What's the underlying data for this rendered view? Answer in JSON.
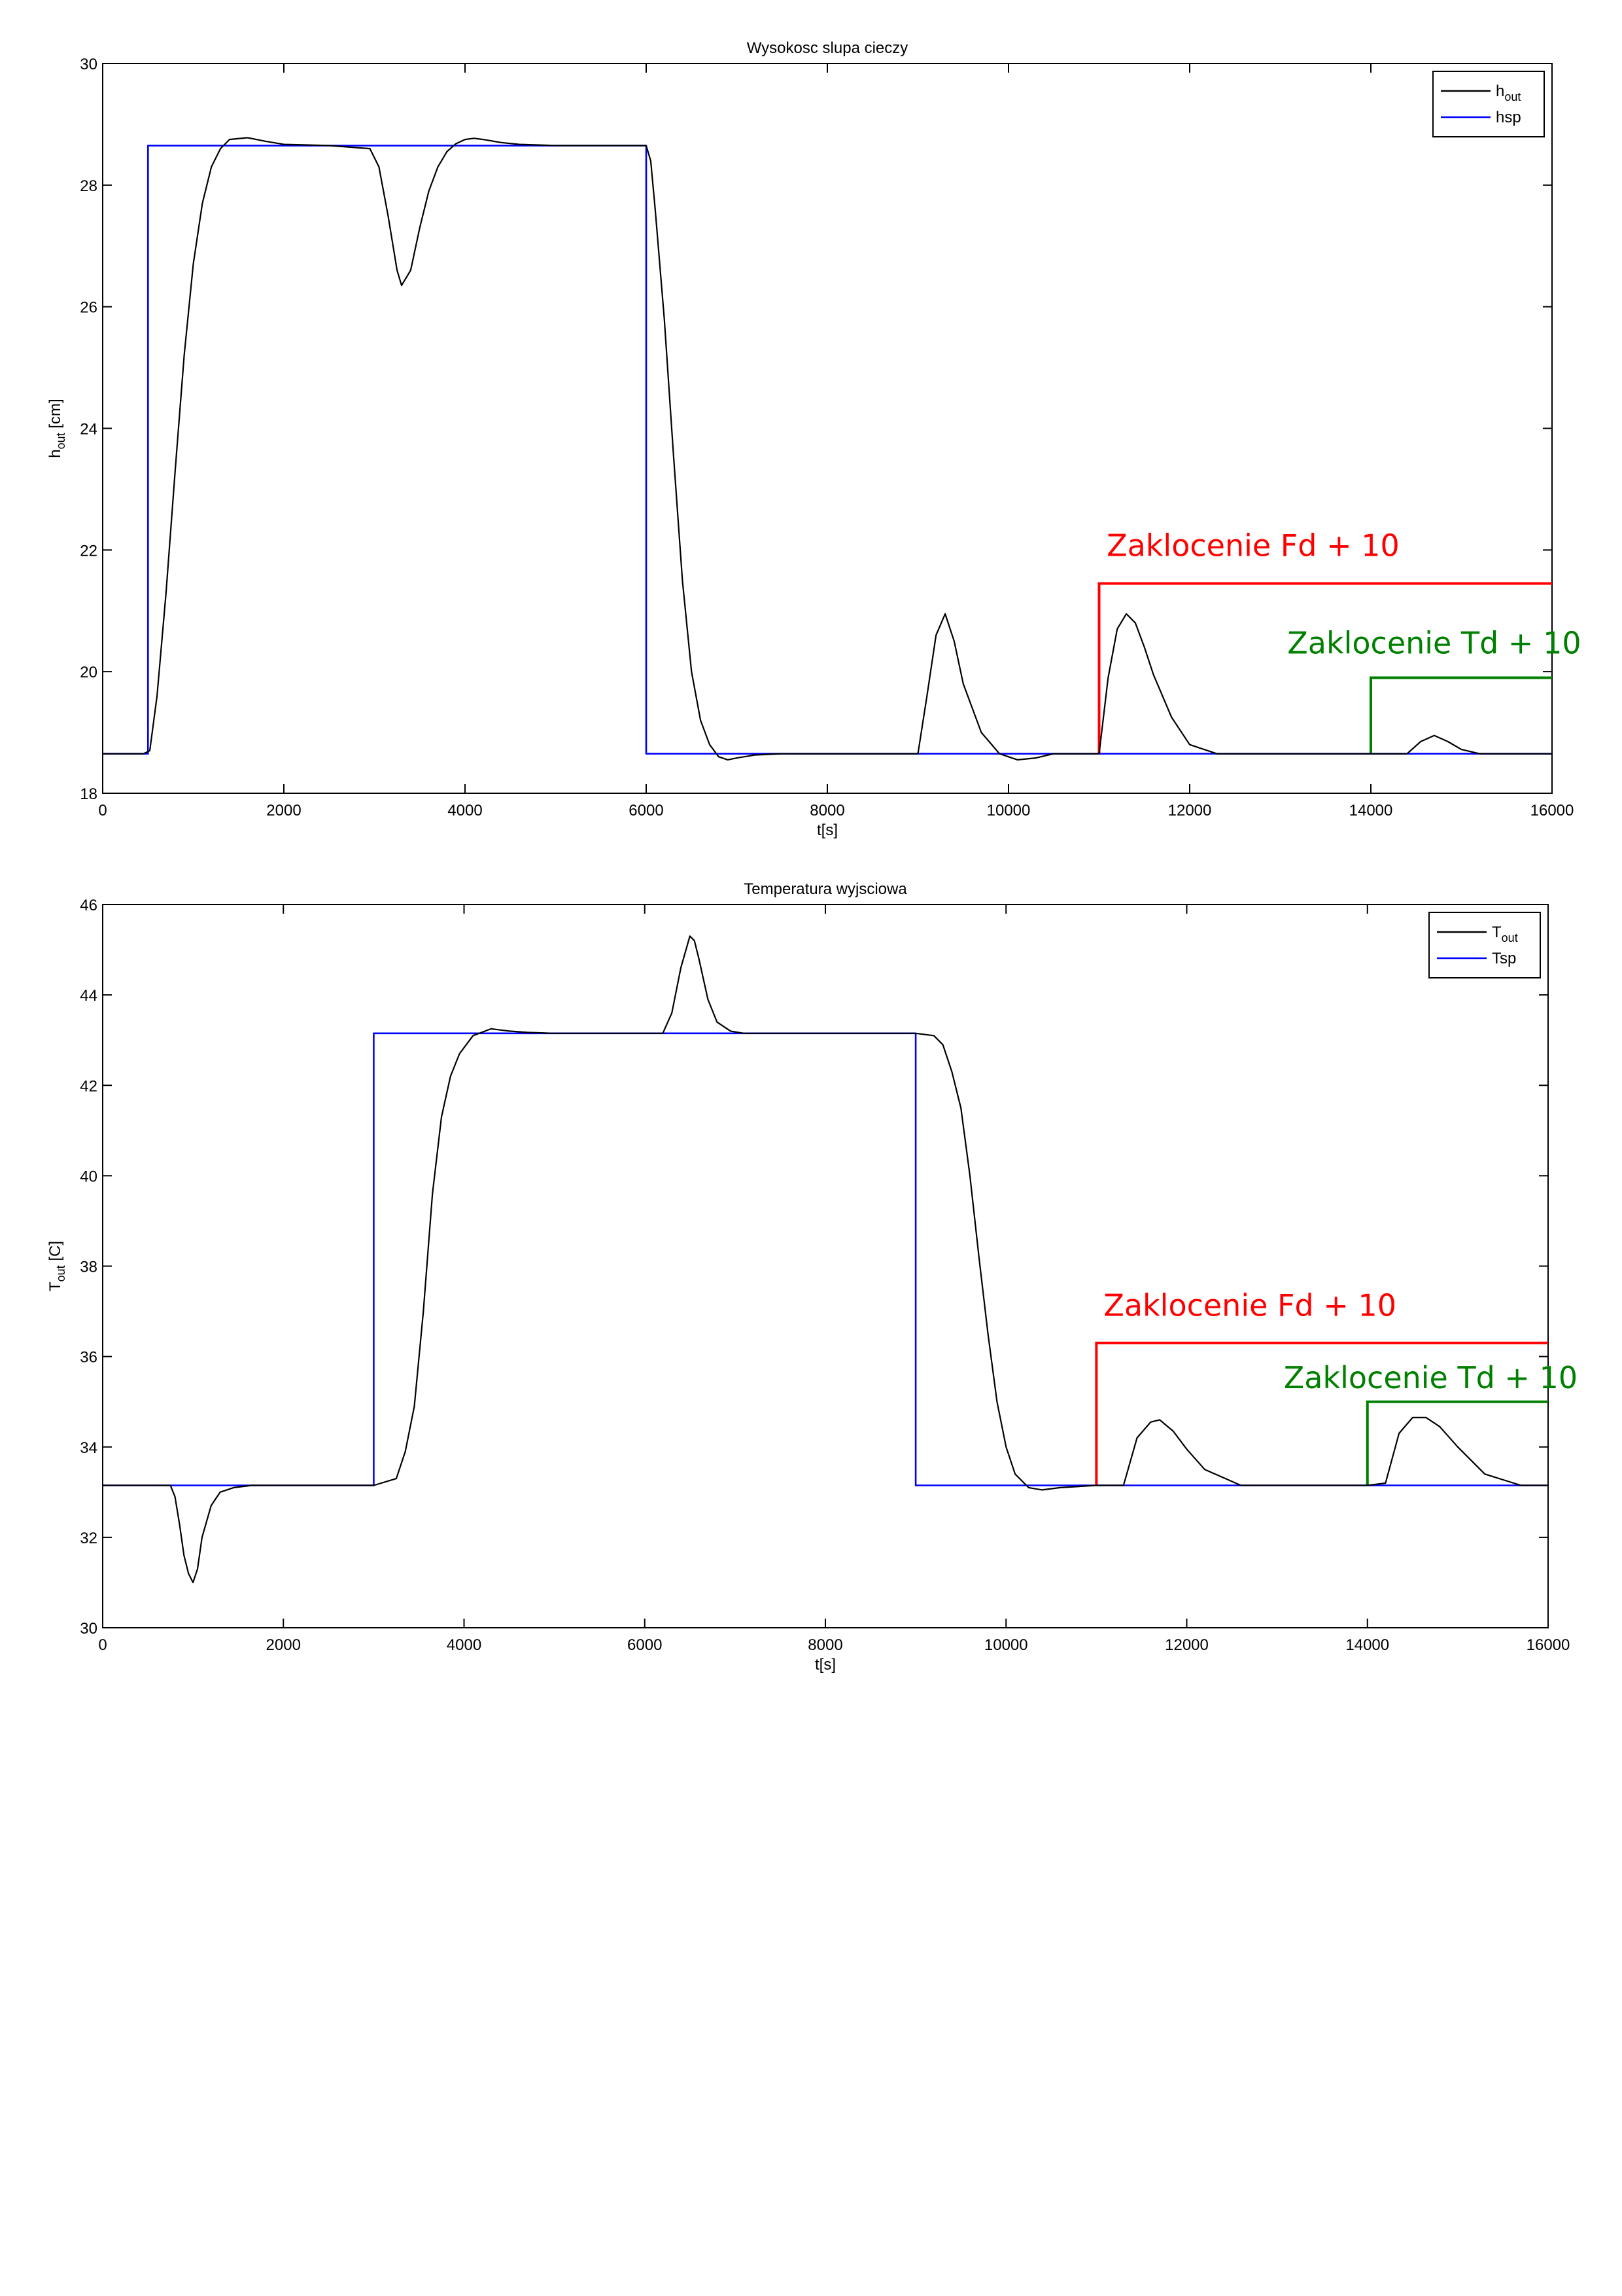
{
  "chart_data": [
    {
      "type": "line",
      "title": "Wysokosc slupa cieczy",
      "xlabel": "t[s]",
      "ylabel": {
        "base": "h",
        "sub": "out",
        "suffix": " [cm]"
      },
      "xlim": [
        0,
        16000
      ],
      "ylim": [
        18,
        30
      ],
      "xticks": [
        0,
        2000,
        4000,
        6000,
        8000,
        10000,
        12000,
        14000,
        16000
      ],
      "yticks": [
        18,
        20,
        22,
        24,
        26,
        28,
        30
      ],
      "legend_position": "top-right",
      "series": [
        {
          "name": "h_out",
          "label": {
            "base": "h",
            "sub": "out"
          },
          "color": "#000000",
          "x": [
            0,
            450,
            520,
            600,
            700,
            800,
            900,
            1000,
            1100,
            1200,
            1300,
            1400,
            1600,
            1800,
            2000,
            2500,
            2950,
            3050,
            3150,
            3250,
            3300,
            3400,
            3500,
            3600,
            3700,
            3800,
            3900,
            4000,
            4100,
            4200,
            4400,
            4600,
            5000,
            6000,
            6050,
            6100,
            6200,
            6300,
            6400,
            6500,
            6600,
            6700,
            6800,
            6900,
            7000,
            7200,
            7500,
            8000,
            9000,
            9100,
            9200,
            9300,
            9400,
            9500,
            9700,
            9900,
            10100,
            10300,
            10500,
            11000,
            11100,
            11200,
            11300,
            11400,
            11500,
            11600,
            11800,
            12000,
            12300,
            12600,
            14000,
            14400,
            14550,
            14700,
            14850,
            15000,
            15200,
            16000
          ],
          "y": [
            18.65,
            18.65,
            18.7,
            19.6,
            21.3,
            23.3,
            25.2,
            26.7,
            27.7,
            28.3,
            28.6,
            28.75,
            28.78,
            28.72,
            28.67,
            28.65,
            28.6,
            28.3,
            27.5,
            26.6,
            26.35,
            26.6,
            27.3,
            27.9,
            28.3,
            28.55,
            28.68,
            28.75,
            28.77,
            28.75,
            28.7,
            28.67,
            28.65,
            28.65,
            28.4,
            27.6,
            25.8,
            23.6,
            21.5,
            20.0,
            19.2,
            18.8,
            18.6,
            18.55,
            18.58,
            18.63,
            18.65,
            18.65,
            18.65,
            19.6,
            20.6,
            20.95,
            20.5,
            19.8,
            19.0,
            18.65,
            18.55,
            18.58,
            18.65,
            18.65,
            19.9,
            20.7,
            20.95,
            20.8,
            20.4,
            19.95,
            19.25,
            18.8,
            18.65,
            18.65,
            18.65,
            18.65,
            18.85,
            18.95,
            18.85,
            18.72,
            18.65,
            18.65
          ]
        },
        {
          "name": "hsp",
          "label": {
            "base": "hsp",
            "sub": ""
          },
          "color": "#0000ff",
          "x": [
            0,
            500,
            500,
            6000,
            6000,
            16000
          ],
          "y": [
            18.65,
            18.65,
            28.65,
            28.65,
            18.65,
            18.65
          ]
        }
      ],
      "annotations": [
        {
          "text": "Zaklocenie Fd + 10",
          "color": "#ff0000",
          "x": 12700,
          "y": 21.9,
          "step": {
            "x0": 11000,
            "x1": 16000,
            "ybase": 18.65,
            "ystep": 21.45
          }
        },
        {
          "text": "Zaklocenie Td + 10",
          "color": "#008000",
          "x": 14700,
          "y": 20.3,
          "step": {
            "x0": 14000,
            "x1": 16000,
            "ybase": 18.65,
            "ystep": 19.9
          }
        }
      ]
    },
    {
      "type": "line",
      "title": "Temperatura wyjsciowa",
      "xlabel": "t[s]",
      "ylabel": {
        "base": "T",
        "sub": "out",
        "suffix": " [C]"
      },
      "xlim": [
        0,
        16000
      ],
      "ylim": [
        30,
        46
      ],
      "xticks": [
        0,
        2000,
        4000,
        6000,
        8000,
        10000,
        12000,
        14000,
        16000
      ],
      "yticks": [
        30,
        32,
        34,
        36,
        38,
        40,
        42,
        44,
        46
      ],
      "legend_position": "top-right",
      "series": [
        {
          "name": "T_out",
          "label": {
            "base": "T",
            "sub": "out"
          },
          "color": "#000000",
          "x": [
            0,
            750,
            800,
            850,
            900,
            950,
            1000,
            1050,
            1100,
            1200,
            1300,
            1450,
            1650,
            1800,
            3000,
            3250,
            3350,
            3450,
            3550,
            3650,
            3750,
            3850,
            3950,
            4100,
            4300,
            4500,
            4700,
            5000,
            6200,
            6300,
            6400,
            6500,
            6550,
            6600,
            6700,
            6800,
            6950,
            7100,
            7400,
            9000,
            9200,
            9300,
            9400,
            9500,
            9600,
            9700,
            9800,
            9900,
            10000,
            10100,
            10250,
            10400,
            10600,
            11000,
            11300,
            11450,
            11600,
            11700,
            11850,
            12000,
            12200,
            12600,
            14000,
            14200,
            14350,
            14500,
            14650,
            14800,
            15000,
            15300,
            15700,
            16000
          ],
          "y": [
            33.15,
            33.15,
            32.9,
            32.3,
            31.6,
            31.2,
            31.0,
            31.3,
            32.0,
            32.7,
            33.0,
            33.1,
            33.15,
            33.15,
            33.15,
            33.3,
            33.9,
            34.9,
            37.0,
            39.6,
            41.3,
            42.2,
            42.7,
            43.1,
            43.25,
            43.2,
            43.17,
            43.15,
            43.15,
            43.6,
            44.6,
            45.3,
            45.2,
            44.8,
            43.9,
            43.4,
            43.2,
            43.15,
            43.15,
            43.15,
            43.1,
            42.9,
            42.3,
            41.5,
            40.0,
            38.2,
            36.5,
            35.0,
            34.0,
            33.4,
            33.1,
            33.05,
            33.1,
            33.15,
            33.15,
            34.2,
            34.55,
            34.6,
            34.35,
            33.95,
            33.5,
            33.15,
            33.15,
            33.2,
            34.3,
            34.65,
            34.65,
            34.45,
            34.0,
            33.4,
            33.15,
            33.15
          ]
        },
        {
          "name": "Tsp",
          "label": {
            "base": "Tsp",
            "sub": ""
          },
          "color": "#0000ff",
          "x": [
            0,
            3000,
            3000,
            9000,
            9000,
            16000
          ],
          "y": [
            33.15,
            33.15,
            43.15,
            43.15,
            33.15,
            33.15
          ]
        }
      ],
      "annotations": [
        {
          "text": "Zaklocenie Fd + 10",
          "color": "#ff0000",
          "x": 12700,
          "y": 36.9,
          "step": {
            "x0": 11000,
            "x1": 16000,
            "ybase": 33.15,
            "ystep": 36.3
          }
        },
        {
          "text": "Zaklocenie Td + 10",
          "color": "#008000",
          "x": 14700,
          "y": 35.3,
          "step": {
            "x0": 14000,
            "x1": 16000,
            "ybase": 33.15,
            "ystep": 35.0
          }
        }
      ]
    }
  ]
}
